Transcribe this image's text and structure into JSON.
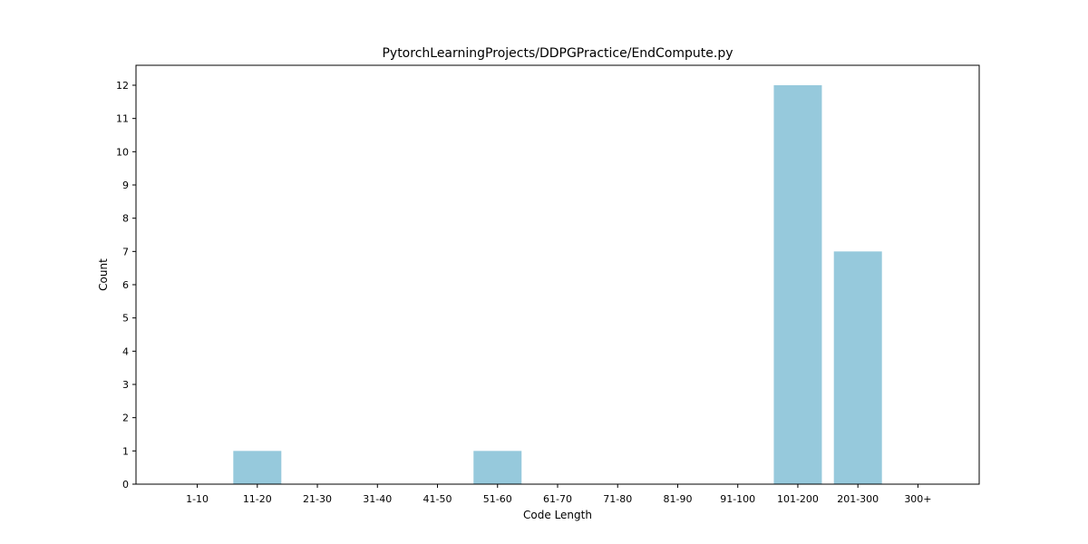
{
  "chart_data": {
    "type": "bar",
    "title": "PytorchLearningProjects/DDPGPractice/EndCompute.py",
    "xlabel": "Code Length",
    "ylabel": "Count",
    "categories": [
      "1-10",
      "11-20",
      "21-30",
      "31-40",
      "41-50",
      "51-60",
      "61-70",
      "71-80",
      "81-90",
      "91-100",
      "101-200",
      "201-300",
      "300+"
    ],
    "values": [
      0,
      1,
      0,
      0,
      0,
      1,
      0,
      0,
      0,
      0,
      12,
      7,
      0
    ],
    "ylim": [
      0,
      12.6
    ],
    "yticks": [
      0,
      1,
      2,
      3,
      4,
      5,
      6,
      7,
      8,
      9,
      10,
      11,
      12
    ],
    "bar_color": "#96c9dc",
    "grid": false,
    "legend": "none"
  }
}
